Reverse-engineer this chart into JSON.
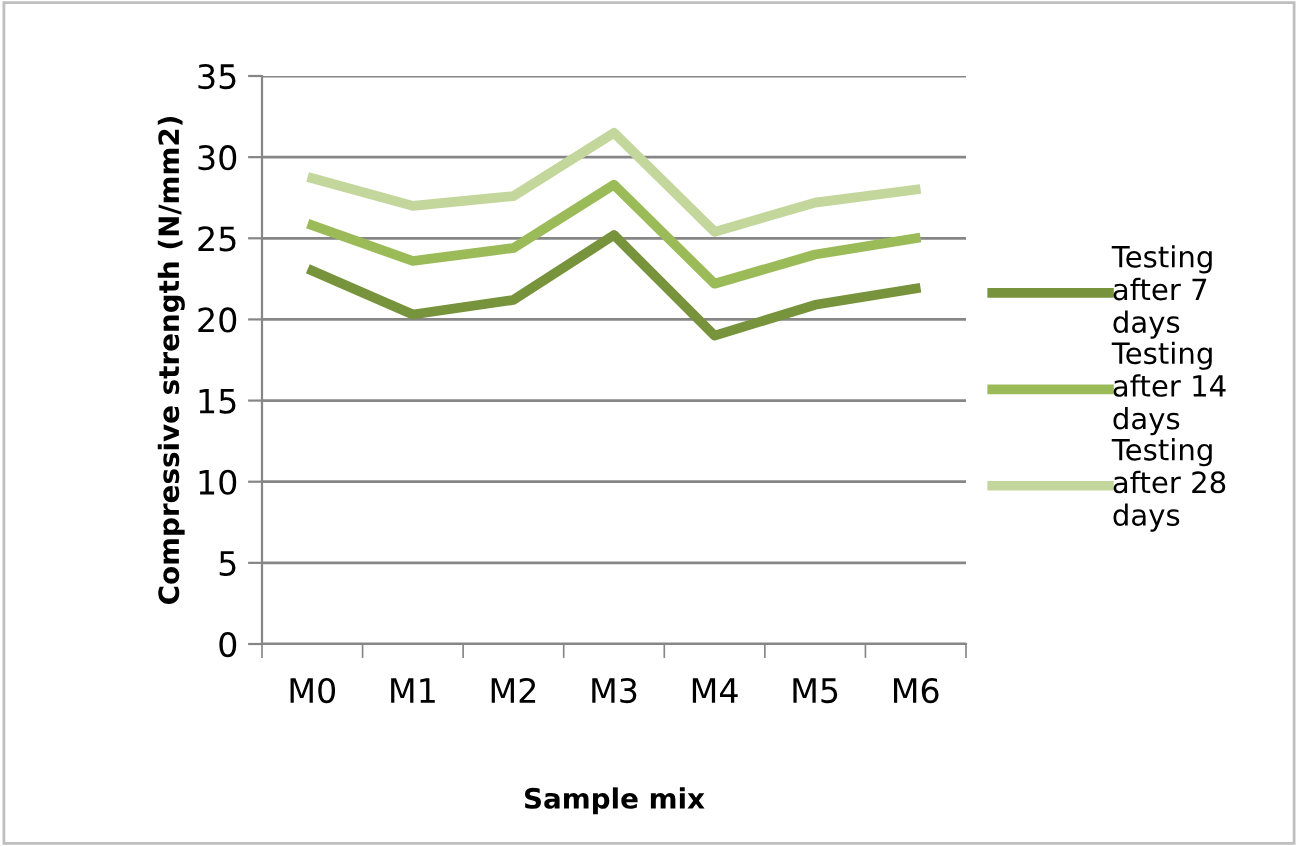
{
  "chart_data": {
    "type": "line",
    "xlabel": "Sample mix",
    "ylabel": "Compressive strength (N/mm2)",
    "categories": [
      "M0",
      "M1",
      "M2",
      "M3",
      "M4",
      "M5",
      "M6"
    ],
    "series": [
      {
        "name": "Testing after 7 days",
        "color": "#77933c",
        "values": [
          23.0,
          20.3,
          21.2,
          25.2,
          19.0,
          20.9,
          21.9
        ]
      },
      {
        "name": "Testing after 14 days",
        "color": "#9bbb59",
        "values": [
          25.8,
          23.6,
          24.4,
          28.3,
          22.2,
          24.0,
          25.0
        ]
      },
      {
        "name": "Testing after 28 days",
        "color": "#c3d69b",
        "values": [
          28.7,
          27.0,
          27.6,
          31.5,
          25.4,
          27.2,
          28.0
        ]
      }
    ],
    "ylim": [
      0,
      35
    ],
    "yticks": [
      0,
      5,
      10,
      15,
      20,
      25,
      30,
      35
    ],
    "grid": "y",
    "legend": "right",
    "marker": "none",
    "line_style": "solid"
  }
}
